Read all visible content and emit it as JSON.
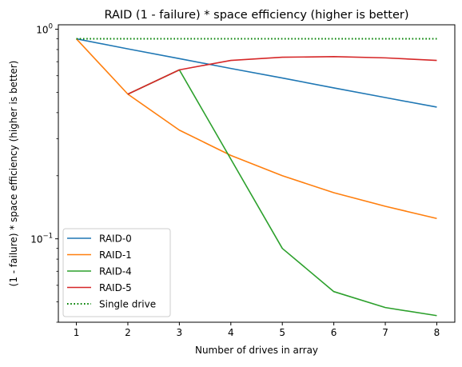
{
  "chart_data": {
    "type": "line",
    "title": "RAID (1 - failure) * space efficiency (higher is better)",
    "xlabel": "Number of drives in array",
    "ylabel": "(1 - failure) * space efficiency (higher is better)",
    "x": [
      1,
      2,
      3,
      4,
      5,
      6,
      7,
      8
    ],
    "xticks": [
      "1",
      "2",
      "3",
      "4",
      "5",
      "6",
      "7",
      "8"
    ],
    "xlim": [
      0.65,
      8.35
    ],
    "yscale": "log",
    "ylim": [
      0.04,
      1.05
    ],
    "yticks": [
      {
        "value": 0.1,
        "label": "10",
        "exp": "−1"
      },
      {
        "value": 1.0,
        "label": "10",
        "exp": "0"
      }
    ],
    "grid": false,
    "legend_position": "lower-left",
    "series": [
      {
        "name": "RAID-0",
        "color": "#1f77b4",
        "style": "solid",
        "values": [
          0.9,
          0.806,
          0.724,
          0.65,
          0.585,
          0.525,
          0.472,
          0.425
        ]
      },
      {
        "name": "RAID-1",
        "color": "#ff7f0e",
        "style": "solid",
        "values": [
          0.9,
          0.49,
          0.33,
          0.25,
          0.2,
          0.166,
          0.143,
          0.125
        ]
      },
      {
        "name": "RAID-4",
        "color": "#2ca02c",
        "style": "solid",
        "values": [
          null,
          0.49,
          0.64,
          0.24,
          0.09,
          0.056,
          0.047,
          0.043
        ]
      },
      {
        "name": "RAID-5",
        "color": "#d62728",
        "style": "solid",
        "values": [
          null,
          0.49,
          0.64,
          0.71,
          0.735,
          0.74,
          0.73,
          0.71
        ]
      },
      {
        "name": "Single drive",
        "color": "#008000",
        "style": "dotted",
        "values": [
          0.9,
          0.9,
          0.9,
          0.9,
          0.9,
          0.9,
          0.9,
          0.9
        ]
      }
    ]
  }
}
